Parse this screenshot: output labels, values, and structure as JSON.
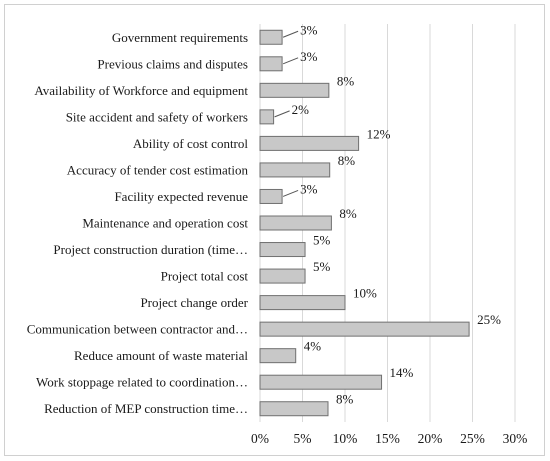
{
  "chart_data": {
    "type": "bar",
    "orientation": "horizontal",
    "categories": [
      "Government requirements",
      "Previous claims and disputes",
      "Availability of Workforce and equipment",
      "Site accident and safety of workers",
      "Ability of cost control",
      "Accuracy of tender cost estimation",
      "Facility expected revenue",
      "Maintenance and operation cost",
      "Project construction duration (time…",
      "Project total cost",
      "Project change order",
      "Communication between contractor and…",
      "Reduce amount of waste material",
      "Work stoppage related to coordination…",
      "Reduction of MEP construction time…"
    ],
    "values": [
      2.6,
      2.6,
      8.1,
      1.6,
      11.6,
      8.2,
      2.6,
      8.4,
      5.3,
      5.3,
      10.0,
      24.6,
      4.2,
      14.3,
      8.0
    ],
    "data_labels": [
      "3%",
      "3%",
      "8%",
      "2%",
      "12%",
      "8%",
      "3%",
      "8%",
      "5%",
      "5%",
      "10%",
      "25%",
      "4%",
      "14%",
      "8%"
    ],
    "xlim": [
      0,
      30
    ],
    "x_ticks": [
      "0%",
      "5%",
      "10%",
      "15%",
      "20%",
      "25%",
      "30%"
    ],
    "grid": "vertical",
    "bar_color": "#c8c8c8",
    "bar_edge_color": "#707070",
    "title": "",
    "xlabel": "",
    "ylabel": ""
  }
}
